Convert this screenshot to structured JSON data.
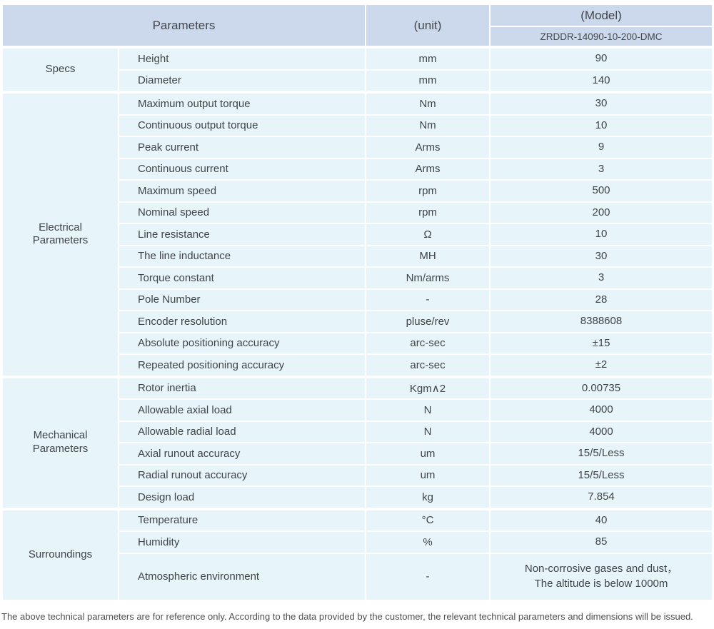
{
  "header": {
    "parameters_label": "Parameters",
    "unit_label": "(unit)",
    "model_label": "(Model)",
    "model_value": "ZRDDR-14090-10-200-DMC"
  },
  "sections": [
    {
      "label": "Specs",
      "rows": [
        {
          "name": "Height",
          "unit": "mm",
          "value": "90"
        },
        {
          "name": "Diameter",
          "unit": "mm",
          "value": "140"
        }
      ]
    },
    {
      "label": "Electrical\nParameters",
      "rows": [
        {
          "name": "Maximum output torque",
          "unit": "Nm",
          "value": "30"
        },
        {
          "name": "Continuous output torque",
          "unit": "Nm",
          "value": "10"
        },
        {
          "name": "Peak current",
          "unit": "Arms",
          "value": "9"
        },
        {
          "name": "Continuous current",
          "unit": "Arms",
          "value": "3"
        },
        {
          "name": "Maximum speed",
          "unit": "rpm",
          "value": "500"
        },
        {
          "name": "Nominal speed",
          "unit": "rpm",
          "value": "200"
        },
        {
          "name": "Line resistance",
          "unit": "Ω",
          "value": "10"
        },
        {
          "name": "The line inductance",
          "unit": "MH",
          "value": "30"
        },
        {
          "name": "Torque constant",
          "unit": "Nm/arms",
          "value": "3"
        },
        {
          "name": "Pole Number",
          "unit": "-",
          "value": "28"
        },
        {
          "name": "Encoder resolution",
          "unit": "pluse/rev",
          "value": "8388608"
        },
        {
          "name": "Absolute positioning accuracy",
          "unit": "arc-sec",
          "value": "±15"
        },
        {
          "name": "Repeated positioning accuracy",
          "unit": "arc-sec",
          "value": "±2"
        }
      ]
    },
    {
      "label": "Mechanical\nParameters",
      "rows": [
        {
          "name": "Rotor inertia",
          "unit": "Kgm∧2",
          "value": "0.00735"
        },
        {
          "name": "Allowable axial load",
          "unit": "N",
          "value": "4000"
        },
        {
          "name": "Allowable radial load",
          "unit": "N",
          "value": "4000"
        },
        {
          "name": "Axial runout accuracy",
          "unit": "um",
          "value": "15/5/Less"
        },
        {
          "name": "Radial runout accuracy",
          "unit": "um",
          "value": "15/5/Less"
        },
        {
          "name": "Design load",
          "unit": "kg",
          "value": "7.854"
        }
      ]
    },
    {
      "label": "Surroundings",
      "rows": [
        {
          "name": "Temperature",
          "unit": "°C",
          "value": "40"
        },
        {
          "name": "Humidity",
          "unit": "%",
          "value": "85"
        },
        {
          "name": "Atmospheric environment",
          "unit": "-",
          "value": "Non-corrosive gases and dust，\nThe altitude is below 1000m"
        }
      ]
    }
  ],
  "footnote": "The above technical parameters are for reference only. According to the data provided by the customer, the relevant technical parameters and dimensions will be issued.",
  "colors": {
    "header_bg": "#ccd8ec",
    "body_bg": "#e7f4fa",
    "divider": "#ffffff",
    "text": "#3f4448",
    "footnote_text": "#4d4f52"
  }
}
